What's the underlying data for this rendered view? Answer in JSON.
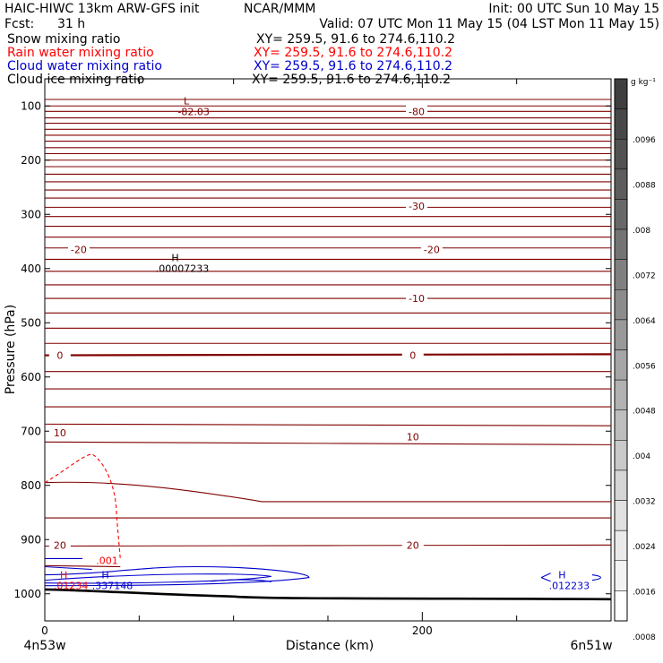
{
  "header": {
    "left_1": "HAIC-HIWC 13km ARW-GFS init",
    "left_2": "NCAR/MMM",
    "right_1": "Init: 00 UTC Sun 10 May 15",
    "fcst_label": "Fcst:",
    "fcst_value": "31 h",
    "valid": "Valid: 07 UTC Mon 11 May 15 (04 LST Mon 11 May 15)",
    "colors": {
      "text": "#000000",
      "rain": "#ff0000",
      "cloud_water": "#0000cc"
    }
  },
  "fields": [
    {
      "name": "Snow mixing ratio",
      "xy": "XY=  259.5,  91.6  to  274.6,110.2",
      "color": "#000000"
    },
    {
      "name": "Rain water mixing ratio",
      "xy": "XY=  259.5,  91.6  to  274.6,110.2",
      "color": "#ff0000"
    },
    {
      "name": "Cloud water mixing ratio",
      "xy": "XY=  259.5,  91.6  to  274.6,110.2",
      "color": "#0000cc"
    },
    {
      "name": "Cloud ice mixing ratio",
      "xy": "XY=  259.5,  91.6  to  274.6,110.2",
      "color": "#000000"
    }
  ],
  "chart_data": {
    "type": "cross-section",
    "ylabel": "Pressure (hPa)",
    "xlabel": "Distance (km)",
    "x_left_label": "4n53w",
    "x_right_label": "6n51w",
    "xlim": [
      0,
      300
    ],
    "ylim": [
      1050,
      50
    ],
    "y_ticks": [
      100,
      200,
      300,
      400,
      500,
      600,
      700,
      800,
      900,
      1000
    ],
    "x_ticks": [
      0,
      200
    ],
    "x_minor_ticks": [
      50,
      100,
      150,
      250,
      300
    ],
    "temperature_contours": {
      "color": "#800000",
      "labels": [
        {
          "text": "-80",
          "x": 197,
          "p": 110
        },
        {
          "text": "-30",
          "x": 197,
          "p": 285
        },
        {
          "text": "-20",
          "x": 18,
          "p": 365
        },
        {
          "text": "-20",
          "x": 205,
          "p": 365
        },
        {
          "text": "-10",
          "x": 197,
          "p": 455
        },
        {
          "text": "0",
          "x": 8,
          "p": 560
        },
        {
          "text": "0",
          "x": 195,
          "p": 560
        },
        {
          "text": "10",
          "x": 8,
          "p": 703
        },
        {
          "text": "10",
          "x": 195,
          "p": 710
        },
        {
          "text": "20",
          "x": 8,
          "p": 910
        },
        {
          "text": "20",
          "x": 195,
          "p": 910
        }
      ]
    },
    "extrema": [
      {
        "type": "L",
        "value": "-82.03",
        "x": 76,
        "p": 100,
        "color": "#800000"
      },
      {
        "type": "H",
        "value": ".00007233",
        "x": 70,
        "p": 390,
        "color": "#000000"
      },
      {
        "type": "H",
        "value": ".01234",
        "x": 11,
        "p": 975,
        "color": "#ff0000"
      },
      {
        "type": "H",
        "value": ".337148",
        "x": 33,
        "p": 975,
        "color": "#0000cc"
      },
      {
        "type": "H",
        "value": ".012233",
        "x": 275,
        "p": 975,
        "color": "#0000cc"
      }
    ],
    "rain_contour_label": {
      "text": ".001",
      "x": 33,
      "p": 945
    },
    "colorbar": {
      "unit": "g kg⁻¹",
      "labels": [
        ".0096",
        ".0088",
        ".008",
        ".0072",
        ".0064",
        ".0056",
        ".0048",
        ".004",
        ".0032",
        ".0024",
        ".0016",
        ".0008"
      ],
      "colors": [
        "#3f3f3f",
        "#484848",
        "#525252",
        "#5d5d5d",
        "#686868",
        "#747474",
        "#808080",
        "#8c8c8c",
        "#989898",
        "#a5a5a5",
        "#b1b1b1",
        "#bdbdbd",
        "#c9c9c9",
        "#d5d5d5",
        "#e0e0e0",
        "#eaeaea",
        "#f3f3f3",
        "#ffffff"
      ]
    }
  }
}
